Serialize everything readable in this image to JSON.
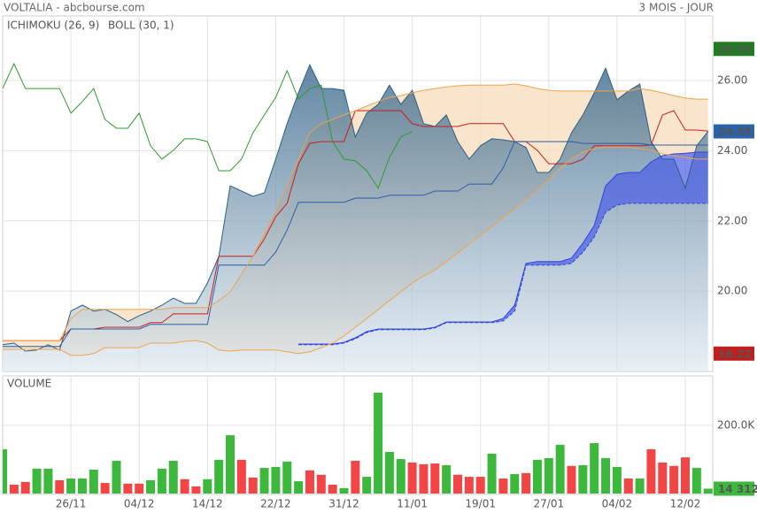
{
  "header": {
    "title": "VOLTALIA - abcbourse.com",
    "period": "3 MOIS - JOUR"
  },
  "chart_data": [
    {
      "type": "stock",
      "categories": [
        null,
        null,
        null,
        null,
        null,
        null,
        "26/11",
        null,
        null,
        null,
        null,
        null,
        "04/12",
        null,
        null,
        null,
        null,
        null,
        "14/12",
        null,
        null,
        null,
        null,
        null,
        "22/12",
        null,
        null,
        null,
        null,
        null,
        "31/12",
        null,
        null,
        null,
        null,
        null,
        "11/01",
        null,
        null,
        null,
        null,
        null,
        "19/01",
        null,
        null,
        null,
        null,
        null,
        "27/01",
        null,
        null,
        null,
        null,
        null,
        "04/02",
        null,
        null,
        null,
        null,
        null,
        "12/02",
        null,
        null
      ],
      "ylim": [
        17.71,
        27.84
      ],
      "yticks": [
        {
          "value": 20,
          "label": "20.00"
        },
        {
          "value": 22,
          "label": "22.00"
        },
        {
          "value": 24,
          "label": "24.00"
        },
        {
          "value": 26,
          "label": "26.00"
        }
      ],
      "grid": true,
      "price": {
        "color": "#2b5f84",
        "values": [
          18.47,
          18.52,
          18.29,
          18.32,
          18.47,
          18.32,
          19.43,
          19.6,
          19.43,
          19.48,
          19.33,
          19.13,
          19.3,
          19.43,
          19.6,
          19.8,
          19.65,
          19.65,
          20.23,
          20.99,
          23.0,
          22.85,
          22.7,
          22.8,
          23.76,
          24.77,
          25.65,
          26.45,
          25.77,
          25.77,
          25.72,
          24.39,
          25.07,
          25.32,
          25.87,
          25.32,
          25.72,
          24.77,
          24.69,
          25.02,
          24.26,
          23.76,
          24.14,
          24.34,
          24.31,
          24.26,
          24.09,
          23.38,
          23.38,
          23.76,
          24.51,
          25.02,
          25.65,
          26.35,
          25.45,
          25.7,
          25.9,
          24.26,
          23.76,
          23.76,
          22.93,
          24.14,
          24.55
        ]
      },
      "markers": [
        {
          "value": 26.9,
          "label": "26.90",
          "color": "#1e7d1e"
        },
        {
          "value": 24.55,
          "label": "24.55",
          "color": "#2a62ad"
        },
        {
          "value": 18.22,
          "label": "18.22",
          "color": "#c41b1b"
        }
      ],
      "indicators": [
        {
          "name": "ICHIMOKU (26, 9)",
          "color": "#2a5fa8",
          "cloud_fill": "#4a5ce6",
          "series": [
            {
              "color": "#c81e1e",
              "values": [
                18.59,
                18.59,
                18.59,
                18.59,
                18.59,
                18.59,
                18.92,
                18.92,
                18.92,
                18.97,
                18.97,
                18.97,
                18.97,
                19.1,
                19.1,
                19.35,
                19.35,
                19.35,
                19.35,
                20.99,
                20.99,
                20.99,
                20.99,
                21.49,
                22.12,
                22.5,
                23.63,
                24.21,
                24.26,
                24.26,
                24.26,
                25.14,
                25.14,
                25.14,
                25.14,
                25.14,
                24.77,
                24.69,
                24.69,
                24.69,
                24.69,
                24.77,
                24.77,
                24.77,
                24.77,
                24.26,
                24.26,
                24.01,
                23.63,
                23.63,
                23.63,
                23.76,
                24.14,
                24.14,
                24.14,
                24.14,
                24.14,
                24.16,
                25.02,
                25.14,
                24.59,
                24.59,
                24.56
              ]
            },
            {
              "color": "#2a5fa8",
              "values": [
                18.42,
                18.42,
                18.42,
                18.42,
                18.42,
                18.42,
                18.92,
                18.92,
                18.92,
                18.92,
                18.92,
                18.92,
                18.92,
                19.05,
                19.05,
                19.05,
                19.05,
                19.05,
                19.05,
                20.74,
                20.74,
                20.74,
                20.74,
                20.74,
                21.11,
                21.74,
                22.53,
                22.53,
                22.53,
                22.53,
                22.53,
                22.65,
                22.65,
                22.65,
                22.73,
                22.73,
                22.73,
                22.73,
                22.85,
                22.85,
                22.85,
                23.05,
                23.05,
                23.05,
                23.51,
                24.26,
                24.26,
                24.26,
                24.26,
                24.26,
                24.26,
                24.21,
                24.21,
                24.21,
                24.21,
                24.21,
                24.21,
                24.16,
                24.16,
                24.16,
                24.16,
                24.16,
                24.16
              ]
            },
            {
              "color": "#2f9a2f",
              "values": [
                25.77,
                26.48,
                25.77,
                25.77,
                25.77,
                25.77,
                25.07,
                25.4,
                25.77,
                24.89,
                24.64,
                24.64,
                25.07,
                24.14,
                23.76,
                24.01,
                24.34,
                24.34,
                24.26,
                23.43,
                23.43,
                23.76,
                24.51,
                25.02,
                25.52,
                26.28,
                25.47,
                25.77,
                25.87,
                24.26,
                23.76,
                23.71,
                23.43,
                22.93,
                23.81,
                24.39,
                24.55,
                null,
                null,
                null,
                null,
                null,
                null,
                null,
                null,
                null,
                null,
                null,
                null,
                null,
                null,
                null,
                null,
                null,
                null,
                null,
                null,
                null,
                null,
                null,
                null,
                null,
                null
              ]
            },
            {
              "color": "#3344dd",
              "values": [
                null,
                null,
                null,
                null,
                null,
                null,
                null,
                null,
                null,
                null,
                null,
                null,
                null,
                null,
                null,
                null,
                null,
                null,
                null,
                null,
                null,
                null,
                null,
                null,
                null,
                null,
                18.49,
                18.49,
                18.49,
                18.49,
                18.54,
                18.67,
                18.85,
                18.92,
                18.92,
                18.92,
                18.92,
                18.92,
                18.97,
                19.12,
                19.12,
                19.12,
                19.12,
                19.12,
                19.22,
                19.6,
                20.79,
                20.84,
                20.84,
                20.84,
                20.94,
                21.37,
                21.87,
                23.0,
                23.33,
                23.38,
                23.38,
                23.68,
                23.86,
                23.91,
                23.93,
                23.96,
                23.96
              ]
            },
            {
              "color": "#3344dd",
              "dashed": true,
              "values": [
                null,
                null,
                null,
                null,
                null,
                null,
                null,
                null,
                null,
                null,
                null,
                null,
                null,
                null,
                null,
                null,
                null,
                null,
                null,
                null,
                null,
                null,
                null,
                null,
                null,
                null,
                18.47,
                18.47,
                18.47,
                18.47,
                18.52,
                18.64,
                18.82,
                18.9,
                18.9,
                18.9,
                18.9,
                18.9,
                18.95,
                19.1,
                19.1,
                19.1,
                19.1,
                19.1,
                19.15,
                19.43,
                20.74,
                20.74,
                20.74,
                20.74,
                20.79,
                21.11,
                21.54,
                22.25,
                22.45,
                22.5,
                22.5,
                22.5,
                22.5,
                22.5,
                22.5,
                22.5,
                22.5
              ]
            }
          ]
        },
        {
          "name": "BOLL (30, 1)",
          "color": "#f0a34a",
          "band_fill": "#f6dcbb",
          "series": [
            {
              "color": "#f0a34a",
              "values": [
                18.59,
                18.59,
                18.59,
                18.59,
                18.59,
                18.59,
                19.22,
                19.48,
                19.48,
                19.48,
                19.48,
                19.48,
                19.48,
                19.48,
                19.48,
                19.53,
                19.53,
                19.53,
                19.53,
                19.73,
                19.98,
                20.48,
                20.99,
                21.62,
                22.25,
                23.0,
                23.76,
                24.51,
                24.77,
                24.89,
                25.02,
                25.14,
                25.27,
                25.4,
                25.52,
                25.57,
                25.65,
                25.72,
                25.77,
                25.82,
                25.85,
                25.87,
                25.87,
                25.87,
                25.87,
                25.9,
                25.85,
                25.77,
                25.72,
                25.7,
                25.7,
                25.7,
                25.7,
                25.7,
                25.7,
                25.7,
                25.77,
                25.72,
                25.65,
                25.57,
                25.5,
                25.47,
                25.47
              ]
            },
            {
              "color": "#f0a34a",
              "values": [
                18.34,
                18.34,
                18.34,
                18.34,
                18.34,
                18.34,
                18.17,
                18.17,
                18.22,
                18.39,
                18.39,
                18.39,
                18.39,
                18.52,
                18.52,
                18.52,
                18.57,
                18.59,
                18.52,
                18.32,
                18.29,
                18.32,
                18.32,
                18.32,
                18.32,
                18.27,
                18.22,
                18.27,
                18.39,
                18.52,
                18.72,
                18.97,
                19.22,
                19.48,
                19.73,
                19.98,
                20.23,
                20.43,
                20.61,
                20.84,
                21.09,
                21.34,
                21.59,
                21.84,
                22.1,
                22.35,
                22.6,
                22.88,
                23.18,
                23.51,
                23.76,
                23.96,
                24.06,
                24.11,
                24.11,
                24.11,
                24.06,
                24.01,
                23.91,
                23.86,
                23.81,
                23.76,
                23.76
              ]
            }
          ]
        }
      ]
    },
    {
      "type": "bar",
      "title": "VOLUME",
      "ylim": [
        0,
        345000
      ],
      "yticks": [
        {
          "value": 200000,
          "label": "200.0K"
        }
      ],
      "grid": true,
      "values": [
        130000,
        26000,
        34000,
        73000,
        73000,
        39000,
        44000,
        44000,
        70000,
        31000,
        96000,
        29000,
        29000,
        39000,
        73000,
        96000,
        42000,
        21000,
        42000,
        99000,
        171000,
        99000,
        47000,
        75000,
        78000,
        94000,
        36000,
        68000,
        55000,
        26000,
        16000,
        96000,
        49000,
        296000,
        122000,
        101000,
        91000,
        86000,
        88000,
        83000,
        55000,
        49000,
        49000,
        117000,
        44000,
        57000,
        60000,
        99000,
        104000,
        143000,
        81000,
        83000,
        148000,
        104000,
        78000,
        44000,
        44000,
        130000,
        91000,
        81000,
        106000,
        75000,
        14312
      ],
      "colors": [
        "#3cb83c",
        "#f24545",
        "#f24545",
        "#3cb83c",
        "#3cb83c",
        "#f24545",
        "#3cb83c",
        "#3cb83c",
        "#3cb83c",
        "#f24545",
        "#3cb83c",
        "#f24545",
        "#f24545",
        "#3cb83c",
        "#3cb83c",
        "#3cb83c",
        "#f24545",
        "#f24545",
        "#3cb83c",
        "#3cb83c",
        "#3cb83c",
        "#f24545",
        "#f24545",
        "#3cb83c",
        "#3cb83c",
        "#3cb83c",
        "#3cb83c",
        "#f24545",
        "#f24545",
        "#f24545",
        "#3cb83c",
        "#f24545",
        "#3cb83c",
        "#3cb83c",
        "#3cb83c",
        "#3cb83c",
        "#f24545",
        "#f24545",
        "#f24545",
        "#3cb83c",
        "#f24545",
        "#f24545",
        "#f24545",
        "#3cb83c",
        "#f24545",
        "#3cb83c",
        "#f24545",
        "#3cb83c",
        "#3cb83c",
        "#3cb83c",
        "#f24545",
        "#3cb83c",
        "#3cb83c",
        "#3cb83c",
        "#3cb83c",
        "#f24545",
        "#3cb83c",
        "#f24545",
        "#f24545",
        "#f24545",
        "#f24545",
        "#3cb83c",
        "#3cb83c"
      ],
      "title_color": "#3cb83c",
      "marker": {
        "value": 14312,
        "label": "14 312",
        "color": "#3cb83c"
      }
    }
  ]
}
